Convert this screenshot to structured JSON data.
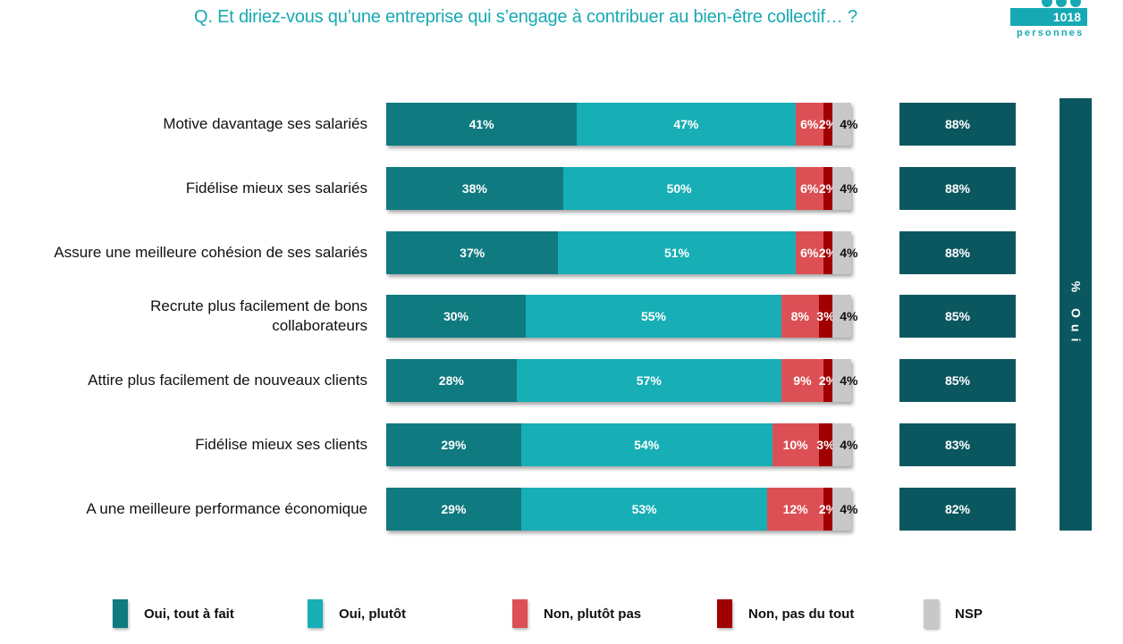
{
  "header": {
    "title": "Q. Et diriez-vous qu’une entreprise qui s’engage à contribuer au bien-être collectif… ?",
    "sample_count": "1018",
    "sample_label": "personnes"
  },
  "side_label": "% Oui",
  "colors": {
    "oui_tout_a_fait": "#0f7a80",
    "oui_plutot": "#17aeb6",
    "non_plutot_pas": "#dc5055",
    "non_pas_du_tout": "#a10000",
    "nsp": "#c8c8c8",
    "total": "#0b5760",
    "title": "#17a9b3"
  },
  "chart_data": {
    "type": "bar",
    "orientation": "horizontal",
    "stacked": true,
    "title": "Q. Et diriez-vous qu’une entreprise qui s’engage à contribuer au bien-être collectif… ?",
    "xlabel": "",
    "ylabel": "",
    "xlim": [
      0,
      100
    ],
    "unit": "%",
    "grid": false,
    "legend_position": "bottom",
    "categories": [
      "Motive davantage ses salariés",
      "Fidélise mieux ses salariés",
      "Assure une meilleure cohésion de ses salariés",
      "Recrute plus facilement de bons collaborateurs",
      "Attire plus facilement de nouveaux clients",
      "Fidélise mieux ses clients",
      "A une meilleure performance économique"
    ],
    "series": [
      {
        "name": "Oui, tout à fait",
        "values": [
          41,
          38,
          37,
          30,
          28,
          29,
          29
        ]
      },
      {
        "name": "Oui, plutôt",
        "values": [
          47,
          50,
          51,
          55,
          57,
          54,
          53
        ]
      },
      {
        "name": "Non, plutôt pas",
        "values": [
          6,
          6,
          6,
          8,
          9,
          10,
          12
        ]
      },
      {
        "name": "Non, pas du tout",
        "values": [
          2,
          2,
          2,
          3,
          2,
          3,
          2
        ]
      },
      {
        "name": "NSP",
        "values": [
          4,
          4,
          4,
          4,
          4,
          4,
          4
        ]
      }
    ],
    "totals_label": "% Oui",
    "totals": [
      88,
      88,
      88,
      85,
      85,
      83,
      82
    ]
  },
  "rows": [
    {
      "label_lines": [
        "Motive davantage ses salariés"
      ],
      "total": "88%"
    },
    {
      "label_lines": [
        "Fidélise mieux ses salariés"
      ],
      "total": "88%"
    },
    {
      "label_lines": [
        "Assure une meilleure cohésion de ses salariés"
      ],
      "total": "88%"
    },
    {
      "label_lines": [
        "Recrute plus facilement de bons",
        "collaborateurs"
      ],
      "total": "85%"
    },
    {
      "label_lines": [
        "Attire plus facilement de nouveaux clients"
      ],
      "total": "85%"
    },
    {
      "label_lines": [
        "Fidélise mieux ses clients"
      ],
      "total": "83%"
    },
    {
      "label_lines": [
        "A une meilleure performance économique"
      ],
      "total": "82%"
    }
  ],
  "legend": [
    {
      "label": "Oui, tout à fait",
      "color": "#0f7a80"
    },
    {
      "label": "Oui, plutôt",
      "color": "#17aeb6"
    },
    {
      "label": "Non, plutôt pas",
      "color": "#dc5055"
    },
    {
      "label": "Non, pas du tout",
      "color": "#a10000"
    },
    {
      "label": "NSP",
      "color": "#c8c8c8"
    }
  ]
}
